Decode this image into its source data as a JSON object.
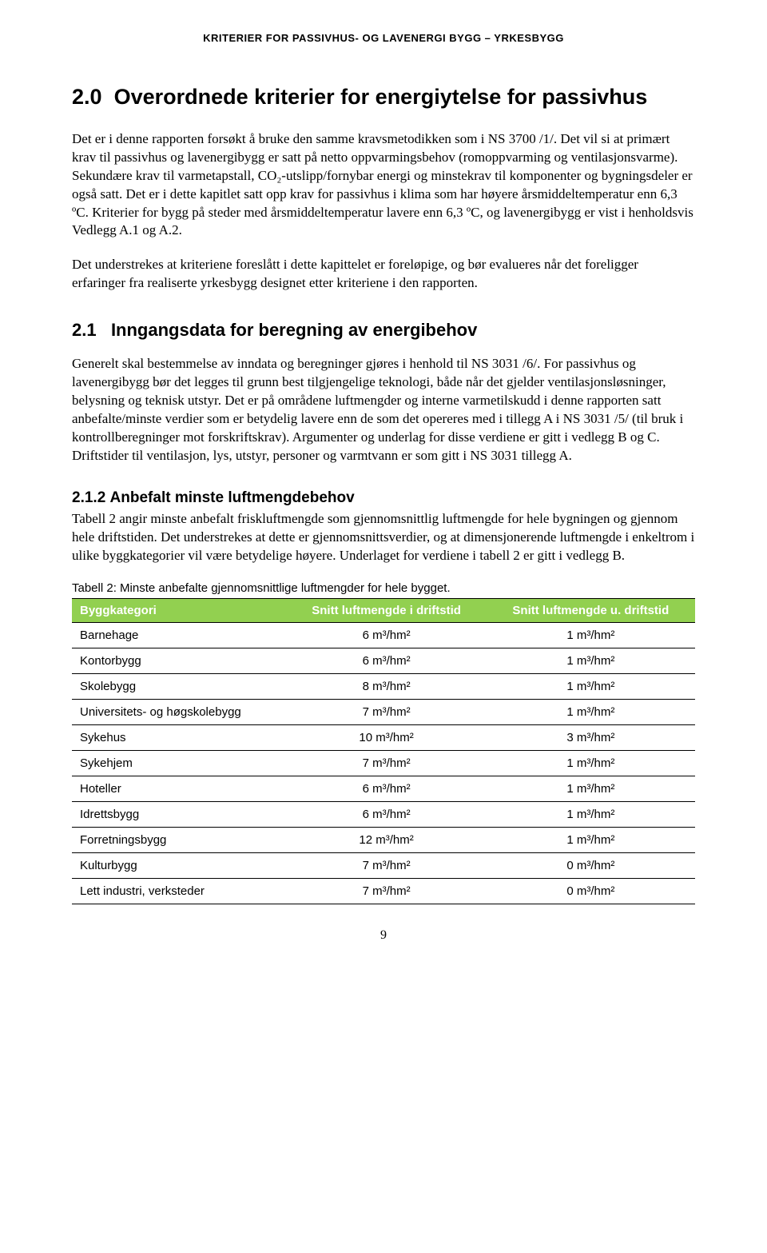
{
  "header": {
    "running_title": "KRITERIER FOR PASSIVHUS- OG LAVENERGI BYGG – YRKESBYGG"
  },
  "section": {
    "number": "2.0",
    "title": "Overordnede kriterier for energiytelse for passivhus",
    "paragraph1": "Det er i denne rapporten forsøkt å bruke den samme kravsmetodikken som i NS 3700 /1/. Det vil si at primært krav til passivhus og lavenergibygg er satt på netto oppvarmingsbehov (romoppvarming og ventilasjonsvarme). Sekundære krav til varmetapstall, CO₂-utslipp/fornybar energi og minstekrav til komponenter og bygningsdeler er også satt. Det er i dette kapitlet satt opp krav for passivhus i klima som har høyere årsmiddeltemperatur enn 6,3 ºC. Kriterier for bygg på steder med årsmiddeltemperatur lavere enn 6,3 ºC, og lavenergibygg er vist i henholdsvis Vedlegg A.1 og A.2.",
    "paragraph2": "Det understrekes at kriteriene foreslått i dette kapittelet er foreløpige, og bør evalueres når det foreligger erfaringer fra realiserte yrkesbygg designet etter kriteriene i den rapporten."
  },
  "subsection_21": {
    "number": "2.1",
    "title": "Inngangsdata for beregning av energibehov",
    "paragraph": "Generelt skal bestemmelse av inndata og beregninger gjøres i henhold til NS 3031 /6/. For passivhus og lavenergibygg bør det legges til grunn best tilgjengelige teknologi, både når det gjelder ventilasjonsløsninger, belysning og teknisk utstyr. Det er på områdene luftmengder og interne varmetilskudd i denne rapporten satt anbefalte/minste verdier som er betydelig lavere enn de som det opereres med i tillegg A i NS 3031 /5/ (til bruk i kontrollberegninger mot forskriftskrav). Argumenter og underlag for disse verdiene er gitt i vedlegg B og C. Driftstider til ventilasjon, lys, utstyr, personer og varmtvann er som gitt i NS 3031 tillegg A."
  },
  "subsection_212": {
    "number": "2.1.2",
    "title": "Anbefalt minste luftmengdebehov",
    "paragraph": "Tabell 2 angir minste anbefalt friskluftmengde som gjennomsnittlig luftmengde for hele bygningen og gjennom hele driftstiden. Det understrekes at dette er gjennomsnittsverdier, og at dimensjonerende luftmengde i enkeltrom i ulike byggkategorier vil være betydelige høyere. Underlaget for verdiene i tabell 2 er gitt i vedlegg B."
  },
  "table2": {
    "caption": "Tabell 2: Minste anbefalte gjennomsnittlige luftmengder for hele bygget.",
    "header_bg": "#92d050",
    "header_fg": "#ffffff",
    "columns": [
      "Byggkategori",
      "Snitt luftmengde i driftstid",
      "Snitt luftmengde u. driftstid"
    ],
    "rows": [
      {
        "category": "Barnehage",
        "in": "6 m³/hm²",
        "out": "1 m³/hm²"
      },
      {
        "category": "Kontorbygg",
        "in": "6 m³/hm²",
        "out": "1 m³/hm²"
      },
      {
        "category": "Skolebygg",
        "in": "8 m³/hm²",
        "out": "1 m³/hm²"
      },
      {
        "category": "Universitets- og høgskolebygg",
        "in": "7 m³/hm²",
        "out": "1 m³/hm²"
      },
      {
        "category": "Sykehus",
        "in": "10 m³/hm²",
        "out": "3 m³/hm²"
      },
      {
        "category": "Sykehjem",
        "in": "7 m³/hm²",
        "out": "1 m³/hm²"
      },
      {
        "category": "Hoteller",
        "in": "6 m³/hm²",
        "out": "1 m³/hm²"
      },
      {
        "category": "Idrettsbygg",
        "in": "6 m³/hm²",
        "out": "1 m³/hm²"
      },
      {
        "category": "Forretningsbygg",
        "in": "12 m³/hm²",
        "out": "1 m³/hm²"
      },
      {
        "category": "Kulturbygg",
        "in": "7 m³/hm²",
        "out": "0 m³/hm²"
      },
      {
        "category": "Lett industri, verksteder",
        "in": "7 m³/hm²",
        "out": "0 m³/hm²"
      }
    ]
  },
  "page_number": "9"
}
